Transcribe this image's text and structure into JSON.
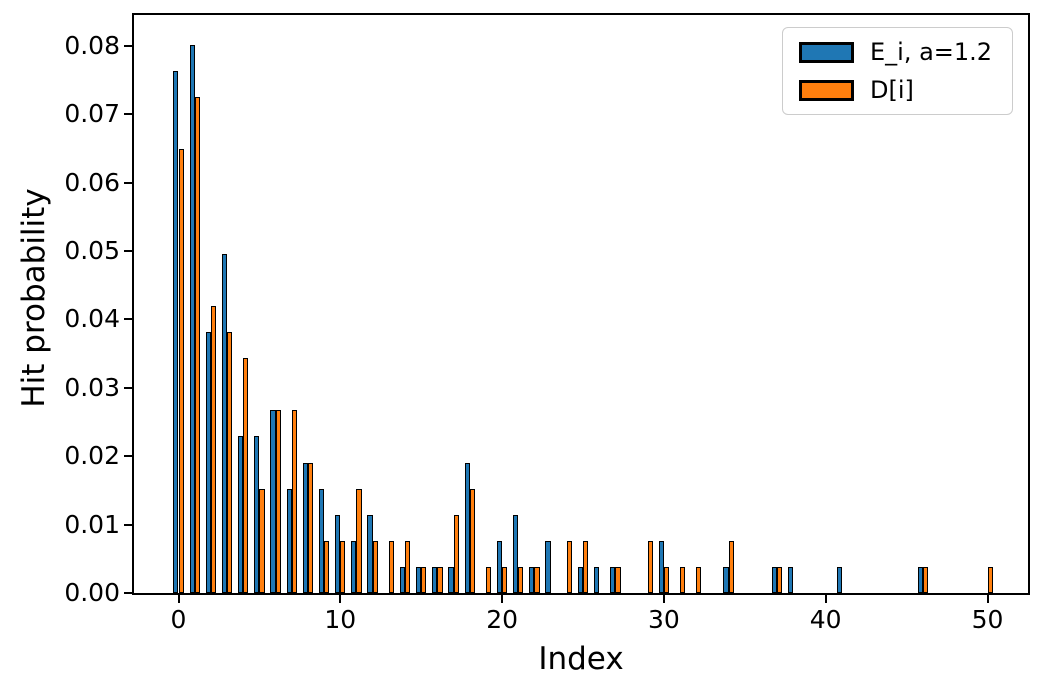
{
  "chart_data": {
    "type": "bar",
    "title": "",
    "xlabel": "Index",
    "ylabel": "Hit probability",
    "grid": false,
    "legend_position": "upper right",
    "xlim": [
      -2.75,
      52.5
    ],
    "ylim": [
      0,
      0.0845
    ],
    "bar_width": 0.32,
    "value_unit": 0.003817,
    "xticks": [
      0,
      10,
      20,
      30,
      40,
      50
    ],
    "ytick_labels": [
      "0.00",
      "0.01",
      "0.02",
      "0.03",
      "0.04",
      "0.05",
      "0.06",
      "0.07",
      "0.08"
    ],
    "ytick_values": [
      0,
      0.01,
      0.02,
      0.03,
      0.04,
      0.05,
      0.06,
      0.07,
      0.08
    ],
    "x": [
      0,
      1,
      2,
      3,
      4,
      5,
      6,
      7,
      8,
      9,
      10,
      11,
      12,
      13,
      14,
      15,
      16,
      17,
      18,
      19,
      20,
      21,
      22,
      23,
      24,
      25,
      26,
      27,
      28,
      29,
      30,
      31,
      32,
      33,
      34,
      35,
      36,
      37,
      38,
      39,
      40,
      41,
      42,
      43,
      44,
      45,
      46,
      47,
      48,
      49,
      50
    ],
    "series": [
      {
        "name": "E_i, a=1.2",
        "color": "#1f77b4",
        "edge_color": "#000000",
        "values": [
          0.07634,
          0.08015,
          0.03817,
          0.04962,
          0.0229,
          0.0229,
          0.02672,
          0.01527,
          0.01908,
          0.01527,
          0.01145,
          0.00763,
          0.01145,
          0,
          0.00382,
          0.00382,
          0.00382,
          0.00382,
          0.01908,
          0,
          0.00763,
          0.01145,
          0.00382,
          0.00763,
          0,
          0.00382,
          0.00382,
          0.00382,
          0,
          0,
          0.00763,
          0,
          0,
          0,
          0.00382,
          0,
          0,
          0.00382,
          0.00382,
          0,
          0,
          0.00382,
          0,
          0,
          0,
          0,
          0.00382,
          0,
          0,
          0,
          0
        ]
      },
      {
        "name": "D[i]",
        "color": "#ff7f0e",
        "edge_color": "#000000",
        "values": [
          0.06489,
          0.07252,
          0.04198,
          0.03817,
          0.03435,
          0.01527,
          0.02672,
          0.02672,
          0.01908,
          0.00763,
          0.00763,
          0.01527,
          0.00763,
          0.00763,
          0.00763,
          0.00382,
          0.00382,
          0.01145,
          0.01527,
          0.00382,
          0.00382,
          0.00382,
          0.00382,
          0,
          0.00763,
          0.00763,
          0,
          0.00382,
          0,
          0.00763,
          0.00382,
          0.00382,
          0.00382,
          0,
          0.00763,
          0,
          0,
          0.00382,
          0,
          0,
          0,
          0,
          0,
          0,
          0,
          0,
          0.00382,
          0,
          0,
          0,
          0.00382
        ]
      }
    ]
  }
}
